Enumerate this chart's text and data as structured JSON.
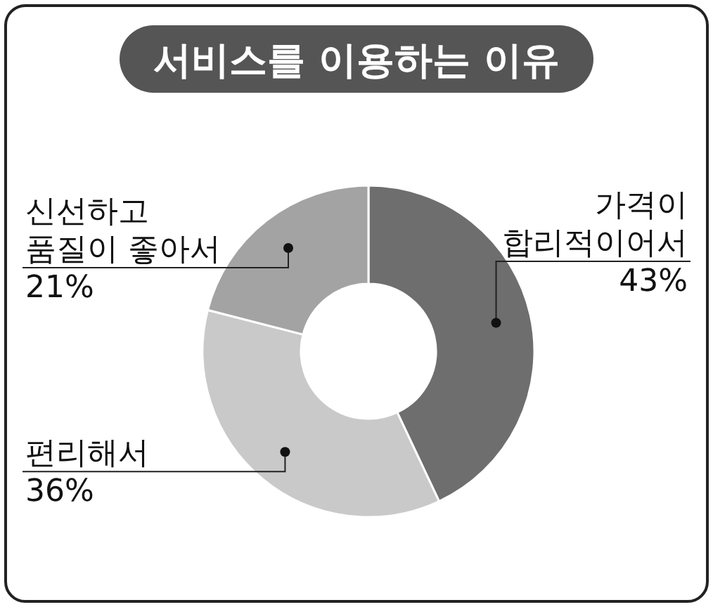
{
  "chart_data": {
    "type": "donut",
    "title": "서비스를 이용하는 이유",
    "categories": [
      "가격이\n합리적이어서",
      "편리해서",
      "신선하고\n품질이 좋아서"
    ],
    "values": [
      43,
      36,
      21
    ],
    "colors": [
      "#6e6e6e",
      "#c9c9c9",
      "#a3a3a3"
    ],
    "value_labels": [
      "43%",
      "36%",
      "21%"
    ]
  }
}
